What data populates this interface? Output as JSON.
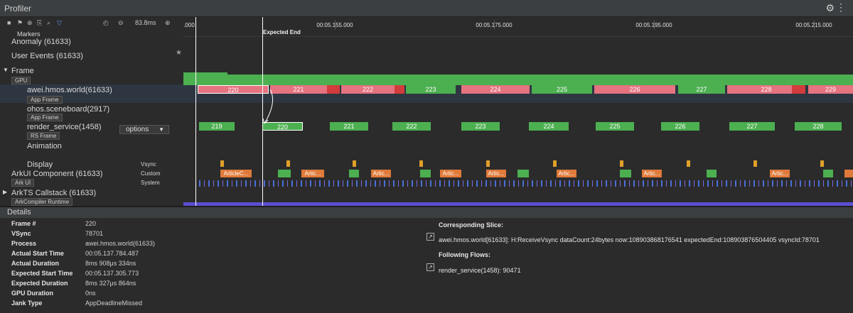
{
  "window": {
    "title": "Profiler"
  },
  "toolbar": {
    "zoom": "83.8ms"
  },
  "ruler": {
    "start": ".000",
    "ticks": [
      "00:05.155.000",
      "00:05.175.000",
      "00:05.195.000",
      "00:05.215.000"
    ],
    "marker": "Expected End"
  },
  "rows": {
    "markers": "Markers",
    "anomaly": "Anomaly (61633)",
    "user_events": "User Events (61633)",
    "frame": "Frame",
    "gpu": "GPU",
    "app": "awei.hmos.world(61633)",
    "app_sub": "App Frame",
    "sceneboard": "ohos.sceneboard(2917)",
    "sceneboard_sub": "App Frame",
    "render": "render_service(1458)",
    "render_sub": "RS Frame",
    "options": "options",
    "animation": "Animation",
    "display": "Display",
    "vsync": "Vsync",
    "arkui": "ArkUI Component (61633)",
    "custom": "Custom",
    "arkui_sub": "Ark UI",
    "system": "System",
    "arkts": "ArkTS Callstack (61633)",
    "arkts_sub": "ArkCompiler Runtime"
  },
  "app_frames": [
    "220",
    "221",
    "222",
    "223",
    "224",
    "225",
    "226",
    "227",
    "228",
    "229"
  ],
  "rs_frames": [
    "219",
    "220",
    "221",
    "222",
    "223",
    "224",
    "225",
    "226",
    "227",
    "228"
  ],
  "arkui_labels": [
    "ArticleC...",
    "Artic...",
    "Artic...",
    "Artic...",
    "Artic...",
    "Artic...",
    "Artic...",
    "Artic..."
  ],
  "details": {
    "header": "Details",
    "fields": [
      {
        "k": "Frame #",
        "v": "220"
      },
      {
        "k": "VSync",
        "v": "78701"
      },
      {
        "k": "Process",
        "v": "awei.hmos.world(61633)"
      },
      {
        "k": "Actual Start Time",
        "v": "00:05.137.784.487"
      },
      {
        "k": "Actual Duration",
        "v": "8ms 908μs 334ns"
      },
      {
        "k": "Expected Start Time",
        "v": "00:05.137.305.773"
      },
      {
        "k": "Expected Duration",
        "v": "8ms 327μs 864ns"
      },
      {
        "k": "GPU Duration",
        "v": "0ns"
      },
      {
        "k": "Jank Type",
        "v": "AppDeadlineMissed"
      }
    ],
    "corr_title": "Corresponding Slice:",
    "corr_text": "awei.hmos.world[61633]: H:ReceiveVsync dataCount:24bytes now:108903868176541 expectedEnd:108903876504405 vsyncId:78701",
    "flow_title": "Following Flows:",
    "flow_text": "render_service(1458): 90471"
  }
}
